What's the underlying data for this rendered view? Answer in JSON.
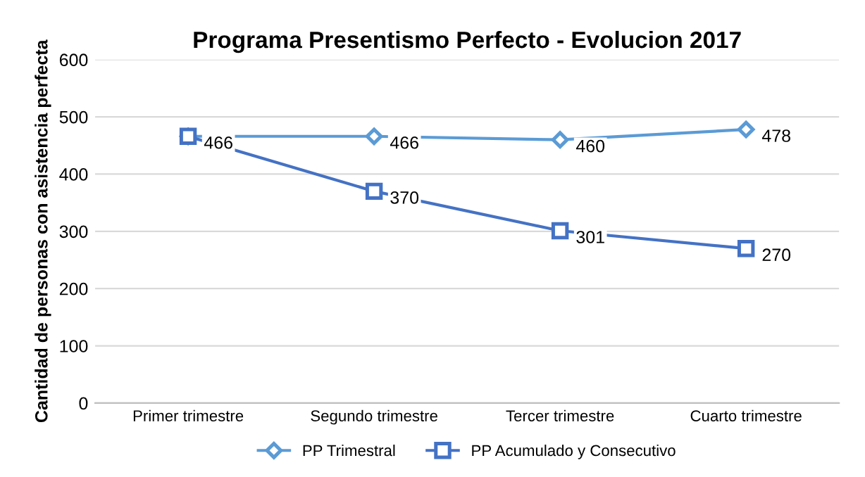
{
  "chart_data": {
    "type": "line",
    "title": "Programa Presentismo Perfecto - Evolucion 2017",
    "ylabel": "Cantidad de personas con asistencia perfecta",
    "categories": [
      "Primer trimestre",
      "Segundo trimestre",
      "Tercer trimestre",
      "Cuarto trimestre"
    ],
    "series": [
      {
        "name": "PP Trimestral",
        "color": "#5b9bd5",
        "marker": "diamond",
        "values": [
          466,
          466,
          460,
          478
        ],
        "value_labels": [
          null,
          "466",
          "460",
          "478"
        ]
      },
      {
        "name": "PP Acumulado y Consecutivo",
        "color": "#4472c4",
        "marker": "square",
        "values": [
          466,
          370,
          301,
          270
        ],
        "value_labels": [
          "466",
          "370",
          "301",
          "270"
        ]
      }
    ],
    "ylim": [
      0,
      600
    ],
    "yticks": [
      0,
      100,
      200,
      300,
      400,
      500,
      600
    ],
    "grid": "y",
    "legend": "bottom",
    "line_style": "solid"
  }
}
